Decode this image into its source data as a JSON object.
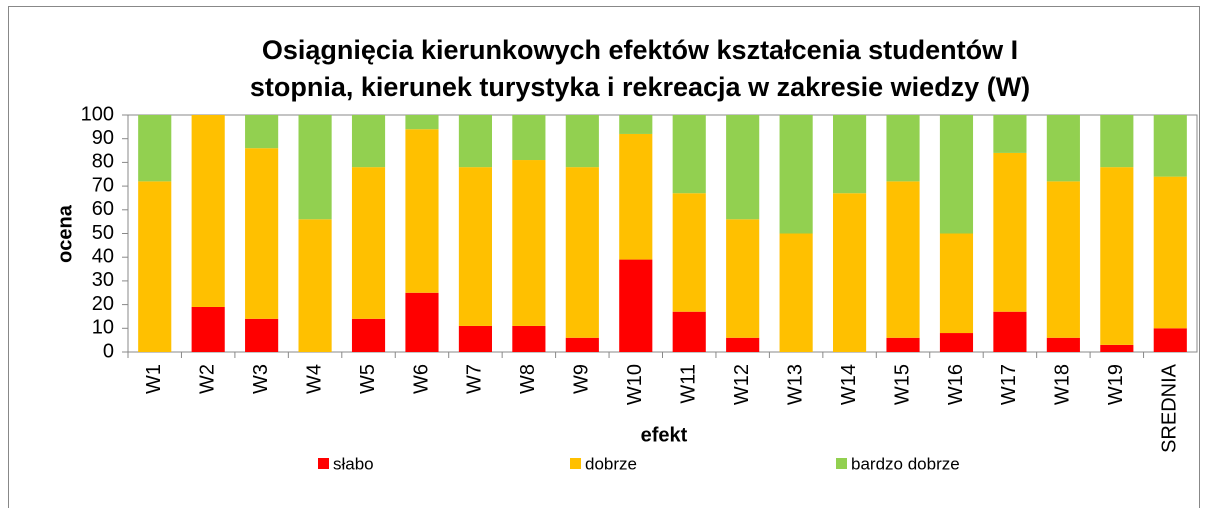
{
  "chart_data": {
    "type": "stacked_bar",
    "title": [
      "Osiągnięcia kierunkowych efektów kształcenia studentów I",
      "stopnia, kierunek turystyka i rekreacja w zakresie wiedzy (W)"
    ],
    "x_label": "efekt",
    "y_label": "ocena",
    "categories": [
      "W1",
      "W2",
      "W3",
      "W4",
      "W5",
      "W6",
      "W7",
      "W8",
      "W9",
      "W10",
      "W11",
      "W12",
      "W13",
      "W14",
      "W15",
      "W16",
      "W17",
      "W18",
      "W19",
      "SREDNIA"
    ],
    "series": [
      {
        "name": "słabo",
        "color": "#ff0000",
        "values": [
          0,
          19,
          14,
          0,
          14,
          25,
          11,
          11,
          6,
          39,
          17,
          6,
          0,
          0,
          6,
          8,
          17,
          6,
          3,
          10
        ]
      },
      {
        "name": "dobrze",
        "color": "#ffc000",
        "values": [
          72,
          81,
          72,
          56,
          64,
          69,
          67,
          70,
          72,
          53,
          50,
          50,
          50,
          67,
          66,
          42,
          67,
          66,
          75,
          64
        ]
      },
      {
        "name": "bardzo dobrze",
        "color": "#92d050",
        "values": [
          28,
          0,
          14,
          44,
          22,
          6,
          22,
          19,
          22,
          8,
          33,
          44,
          50,
          33,
          28,
          50,
          16,
          28,
          22,
          26
        ]
      }
    ],
    "ylim": [
      0,
      100
    ],
    "yticks": [
      0,
      10,
      20,
      30,
      40,
      50,
      60,
      70,
      80,
      90,
      100
    ],
    "grid": false,
    "legend": "bottom"
  }
}
